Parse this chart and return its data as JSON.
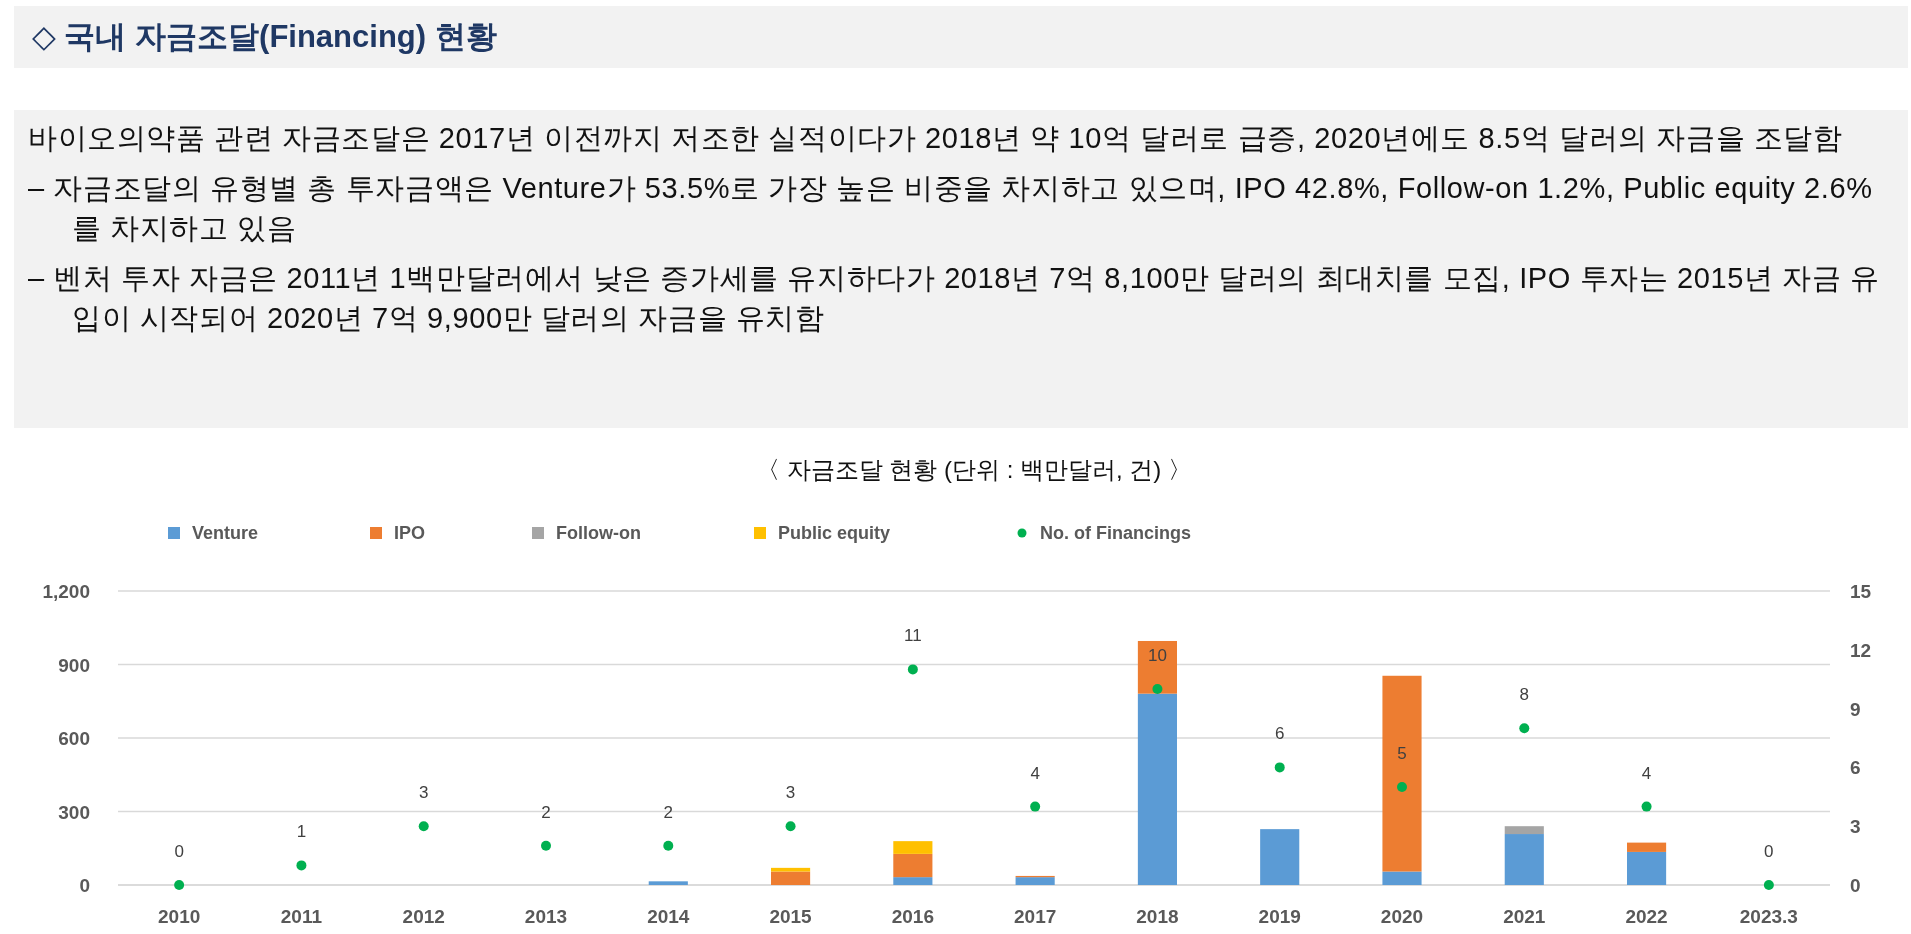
{
  "chart_data": {
    "type": "bar",
    "title": "〈 자금조달 현황 (단위 : 백만달러, 건) 〉",
    "annotations": [
      "◇ 국내 자금조달(Financing) 현황",
      "바이오의약품 관련 자금조달은 2017년 이전까지 저조한 실적이다가 2018년 약 10억 달러로 급증, 2020년에도 8.5억 달러의 자금을 조달함",
      "– 자금조달의 유형별 총 투자금액은 Venture가 53.5%로 가장 높은 비중을 차지하고 있으며, IPO 42.8%, Follow-on 1.2%, Public equity 2.6%를 차지하고 있음",
      "– 벤처 투자 자금은 2011년 1백만달러에서 낮은 증가세를 유지하다가 2018년 7억 8,100만 달러의 최대치를 모집, IPO 투자는 2015년 자금 유입이 시작되어 2020년 7억 9,900만 달러의 자금을 유치함"
    ],
    "categories": [
      "2010",
      "2011",
      "2012",
      "2013",
      "2014",
      "2015",
      "2016",
      "2017",
      "2018",
      "2019",
      "2020",
      "2021",
      "2022",
      "2023.3"
    ],
    "stacked": true,
    "series": [
      {
        "name": "Venture",
        "color": "#5b9bd5",
        "values": [
          null,
          null,
          null,
          null,
          15,
          null,
          32,
          32,
          781,
          228,
          55,
          208,
          135,
          null
        ]
      },
      {
        "name": "IPO",
        "color": "#ed7d31",
        "values": [
          null,
          null,
          null,
          null,
          null,
          55,
          95,
          5,
          215,
          null,
          799,
          null,
          38,
          null
        ]
      },
      {
        "name": "Follow-on",
        "color": "#a5a5a5",
        "values": [
          null,
          null,
          null,
          null,
          null,
          null,
          null,
          null,
          null,
          null,
          null,
          32,
          null,
          null
        ]
      },
      {
        "name": "Public equity",
        "color": "#ffc000",
        "values": [
          null,
          null,
          null,
          null,
          null,
          15,
          52,
          null,
          null,
          null,
          null,
          null,
          null,
          null
        ]
      },
      {
        "name": "No. of Financings",
        "type": "scatter",
        "axis": "y2",
        "color": "#00b050",
        "marker": "circle",
        "values": [
          0,
          1,
          3,
          2,
          2,
          3,
          11,
          4,
          10,
          6,
          5,
          8,
          4,
          0
        ],
        "value_labels": [
          "0",
          "1",
          "3",
          "2",
          "2",
          "3",
          "11",
          "4",
          "10",
          "6",
          "5",
          "8",
          "4",
          "0"
        ]
      }
    ],
    "ylim": [
      0,
      1200
    ],
    "yticks": [
      {
        "value": 0,
        "label": "0"
      },
      {
        "value": 300,
        "label": "300"
      },
      {
        "value": 600,
        "label": "600"
      },
      {
        "value": 900,
        "label": "900"
      },
      {
        "value": 1200,
        "label": "1,200"
      }
    ],
    "y2lim": [
      0,
      15
    ],
    "y2ticks": [
      0,
      3,
      6,
      9,
      12,
      15
    ],
    "grid": "y",
    "legend": "top left"
  }
}
